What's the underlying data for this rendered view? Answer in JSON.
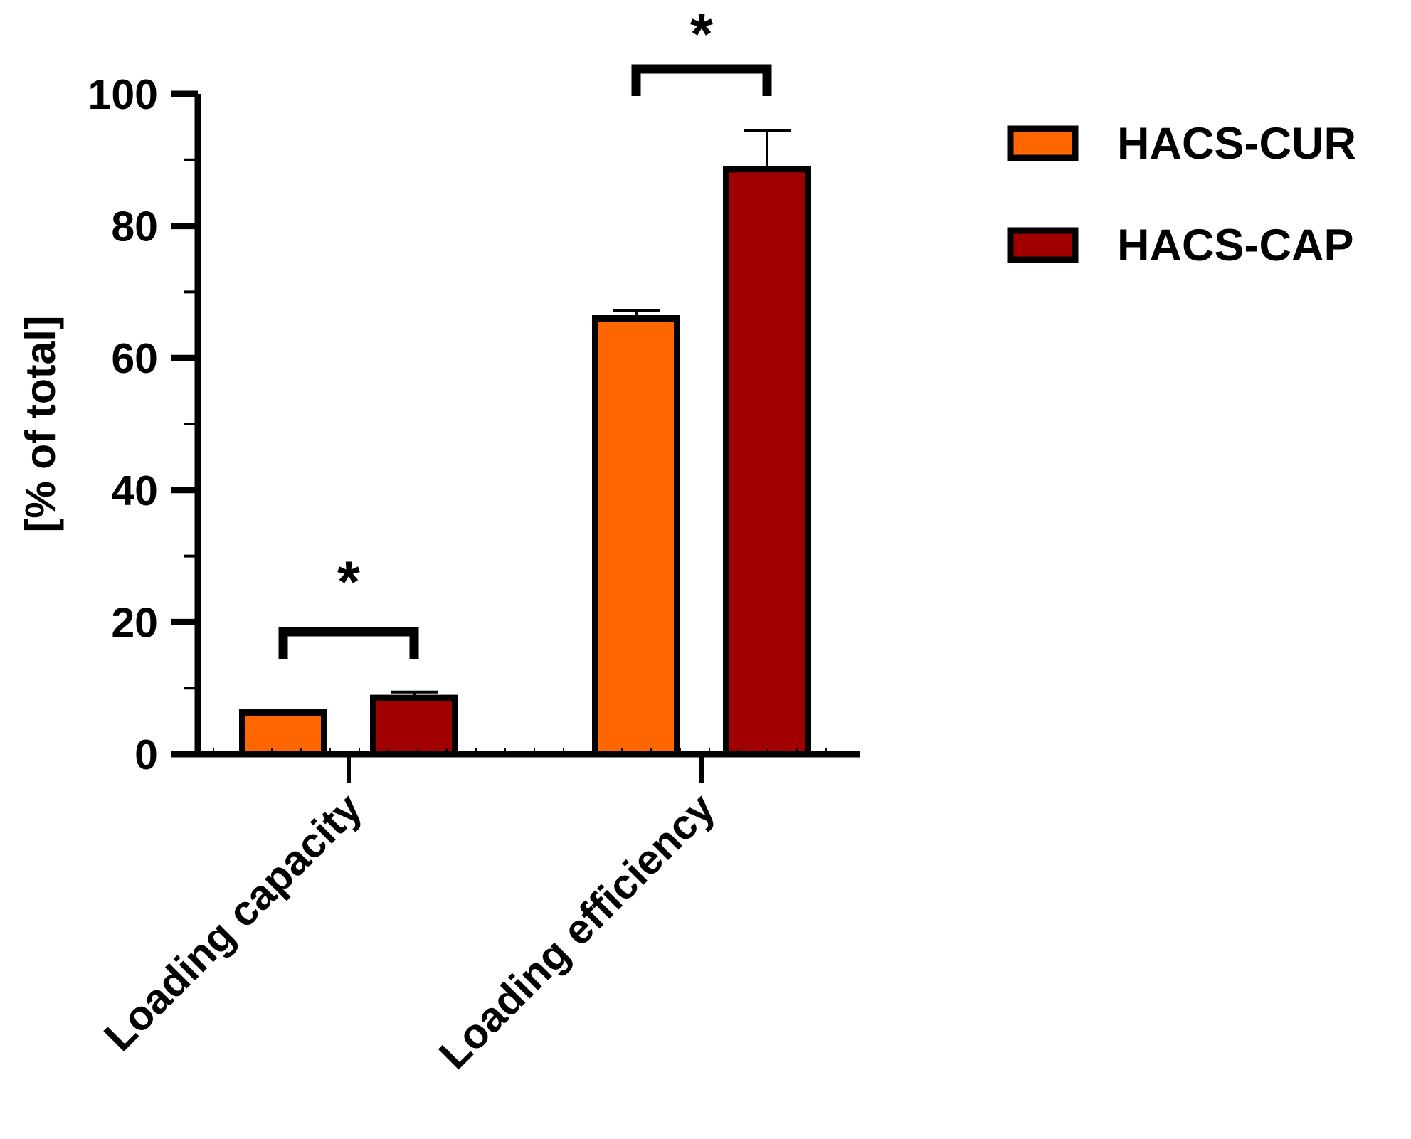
{
  "chart_data": {
    "type": "bar",
    "title": "",
    "xlabel": "",
    "ylabel": "[% of total]",
    "ylim": [
      0,
      100
    ],
    "yticks": [
      "0",
      "20",
      "40",
      "60",
      "80",
      "100"
    ],
    "grid": false,
    "legend_position": "top-right",
    "categories": [
      "Loading capacity",
      "Loading efficiency"
    ],
    "series": [
      {
        "name": "HACS-CUR",
        "color": "#ff6600",
        "values": [
          6.3,
          66.0
        ],
        "errors": [
          0.2,
          1.2
        ]
      },
      {
        "name": "HACS-CAP",
        "color": "#a00000",
        "values": [
          8.5,
          88.6
        ],
        "errors": [
          0.9,
          5.9
        ]
      }
    ],
    "significance": [
      {
        "category": "Loading capacity",
        "label": "*"
      },
      {
        "category": "Loading efficiency",
        "label": "*"
      }
    ]
  }
}
